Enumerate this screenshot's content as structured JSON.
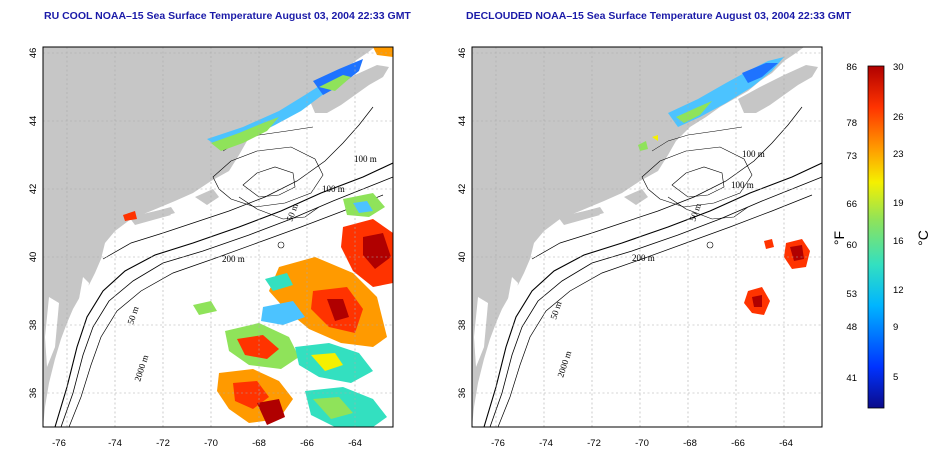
{
  "panels": [
    {
      "id": "left",
      "title": "RU COOL NOAA–15 Sea Surface Temperature August 03, 2004 22:33 GMT"
    },
    {
      "id": "right",
      "title": "DECLOUDED NOAA–15 Sea Surface Temperature August 03, 2004 22:33 GMT"
    }
  ],
  "map": {
    "lon_ticks": [
      "-76",
      "-74",
      "-72",
      "-70",
      "-68",
      "-66",
      "-64"
    ],
    "lat_ticks": [
      "36",
      "38",
      "40",
      "42",
      "44",
      "46"
    ],
    "depth_labels": [
      "100 m",
      "100 m",
      "50 m",
      "200 m",
      "50 m",
      "2000 m"
    ]
  },
  "colorbar": {
    "f_label": "°F",
    "c_label": "°C",
    "f_ticks": [
      "86",
      "78",
      "73",
      "66",
      "60",
      "53",
      "48",
      "41"
    ],
    "c_ticks": [
      "30",
      "26",
      "23",
      "19",
      "16",
      "12",
      "9",
      "5"
    ],
    "colors": [
      "#0b0b8a",
      "#0033ff",
      "#00b5ff",
      "#33e0c0",
      "#8fe35a",
      "#f5f000",
      "#ff9a00",
      "#ff3300",
      "#b00000"
    ]
  }
}
